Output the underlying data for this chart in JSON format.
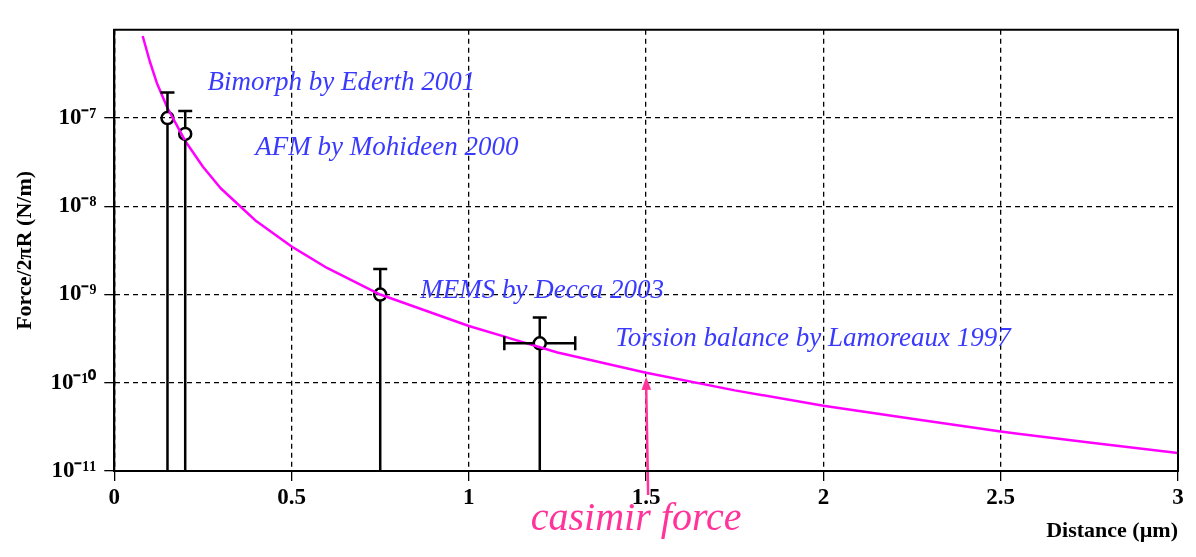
{
  "chart_data": {
    "type": "scatter",
    "xlabel": "Distance (µm)",
    "ylabel": "Force/2πR (N/m)",
    "xlim": [
      0,
      3
    ],
    "xticks": [
      0,
      0.5,
      1,
      1.5,
      2,
      2.5,
      3
    ],
    "ylim": [
      1e-11,
      1e-06
    ],
    "yticks": [
      {
        "value": 1e-11,
        "label": "10⁻¹¹"
      },
      {
        "value": 1e-10,
        "label": "10⁻¹⁰"
      },
      {
        "value": 1e-09,
        "label": "10⁻⁹"
      },
      {
        "value": 1e-08,
        "label": "10⁻⁸"
      },
      {
        "value": 1e-07,
        "label": "10⁻⁷"
      }
    ],
    "log": "y",
    "grid": true,
    "legend": false,
    "series": [
      {
        "type": "line",
        "name": "casimir force",
        "color": "#ff00ff",
        "x": [
          0.08,
          0.1,
          0.12,
          0.15,
          0.2,
          0.25,
          0.3,
          0.4,
          0.5,
          0.6,
          0.75,
          1.0,
          1.25,
          1.5,
          1.75,
          2.0,
          2.25,
          2.5,
          2.75,
          3.0
        ],
        "values": [
          8.5e-07,
          4.4e-07,
          2.5e-07,
          1.3e-07,
          5.5e-08,
          2.8e-08,
          1.6e-08,
          6.8e-09,
          3.5e-09,
          2e-09,
          1e-09,
          4.4e-10,
          2.2e-10,
          1.3e-10,
          8.2e-11,
          5.5e-11,
          3.9e-11,
          2.8e-11,
          2.1e-11,
          1.6e-11
        ]
      },
      {
        "type": "scatter",
        "color": "#000000",
        "marker": "circle",
        "x": [
          0.15,
          0.2,
          0.75,
          1.2
        ],
        "values": [
          1e-07,
          6.6e-08,
          1e-09,
          2.8e-10
        ],
        "errors": [
          [
            1e-11,
            1.95e-07
          ],
          [
            1e-11,
            1.2e-07
          ],
          [
            1e-11,
            1.95e-09
          ],
          [
            1e-11,
            5.5e-10
          ]
        ],
        "xerrors": [
          null,
          null,
          null,
          [
            1.1,
            1.3
          ]
        ]
      }
    ],
    "annotations": [
      "Bimorph by Ederth 2001",
      "AFM by Mohideen 2000",
      "MEMS by Decca 2003",
      "Torsion balance by Lamoreaux 1997"
    ]
  }
}
